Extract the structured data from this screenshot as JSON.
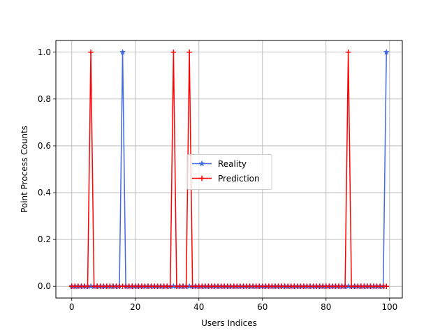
{
  "chart_data": {
    "type": "line",
    "title": "",
    "xlabel": "Users Indices",
    "ylabel": "Point Process Counts",
    "xlim": [
      -5,
      104
    ],
    "ylim": [
      -0.05,
      1.05
    ],
    "x_ticks": [
      0,
      20,
      40,
      60,
      80,
      100
    ],
    "x_tick_labels": [
      "0",
      "20",
      "40",
      "60",
      "80",
      "100"
    ],
    "y_ticks": [
      0.0,
      0.2,
      0.4,
      0.6,
      0.8,
      1.0
    ],
    "y_tick_labels": [
      "0.0",
      "0.2",
      "0.4",
      "0.6",
      "0.8",
      "1.0"
    ],
    "grid": true,
    "legend_position": "center",
    "x_start": 0,
    "x_end": 99,
    "series": [
      {
        "name": "Reality",
        "color": "#4169e1",
        "marker": "star",
        "ones": [
          16,
          99
        ]
      },
      {
        "name": "Prediction",
        "color": "#ff0000",
        "marker": "plus",
        "ones": [
          6,
          32,
          37,
          87
        ]
      }
    ]
  }
}
